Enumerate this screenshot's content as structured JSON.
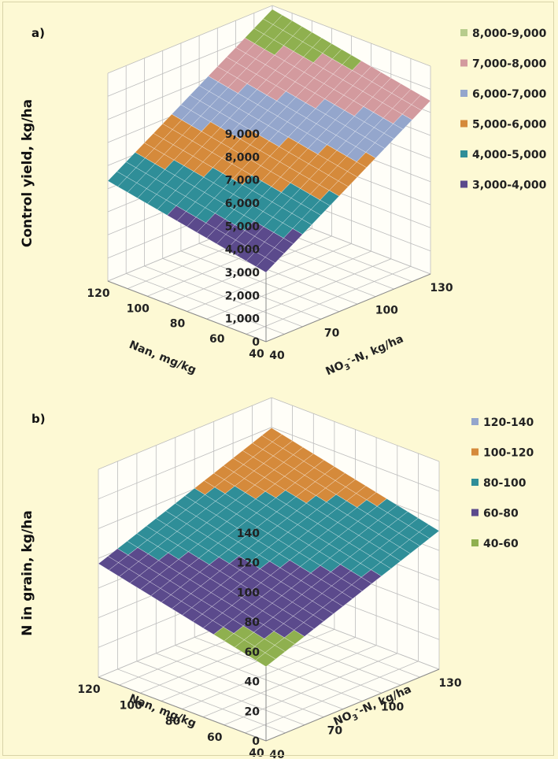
{
  "chart_data": [
    {
      "type": "surface",
      "panel_label": "a)",
      "zlabel": "Control yield, kg/ha",
      "xlabel": "Nan, mg/kg",
      "ylabel": "NO3-N, kg/ha",
      "x_ticks": [
        "40",
        "60",
        "80",
        "100",
        "120"
      ],
      "y_ticks": [
        "40",
        "70",
        "100",
        "130"
      ],
      "z_ticks": [
        "0",
        "1,000",
        "2,000",
        "3,000",
        "4,000",
        "5,000",
        "6,000",
        "7,000",
        "8,000",
        "9,000"
      ],
      "xlim": [
        40,
        120
      ],
      "ylim": [
        40,
        130
      ],
      "zlim": [
        0,
        9000
      ],
      "surface": {
        "z_at_x40_y40": 3000,
        "z_per_x_unit": 16.7,
        "z_per_y_unit": 50
      },
      "legend": [
        {
          "label": "8,000-9,000",
          "color": "#b7cc8c"
        },
        {
          "label": "7,000-8,000",
          "color": "#d39a9e"
        },
        {
          "label": "6,000-7,000",
          "color": "#94a6cc"
        },
        {
          "label": "5,000-6,000",
          "color": "#d58a3b"
        },
        {
          "label": "4,000-5,000",
          "color": "#2f8e98"
        },
        {
          "label": "3,000-4,000",
          "color": "#5b4a8c"
        }
      ],
      "bands": [
        3000,
        4000,
        5000,
        6000,
        7000,
        8000,
        9000
      ],
      "band_colors": [
        "#5b4a8c",
        "#2f8e98",
        "#d58a3b",
        "#94a6cc",
        "#d39a9e",
        "#8fb04f"
      ]
    },
    {
      "type": "surface",
      "panel_label": "b)",
      "zlabel": "N in grain, kg/ha",
      "xlabel": "Nan, mg/kg",
      "ylabel": "NO3-N, kg/ha",
      "x_ticks": [
        "40",
        "60",
        "80",
        "100",
        "120"
      ],
      "y_ticks": [
        "40",
        "70",
        "100",
        "130"
      ],
      "z_ticks": [
        "0",
        "20",
        "40",
        "60",
        "80",
        "100",
        "120",
        "140"
      ],
      "xlim": [
        40,
        120
      ],
      "ylim": [
        40,
        130
      ],
      "zlim": [
        0,
        140
      ],
      "surface": {
        "z_at_x40_y40": 50,
        "z_per_x_unit": 0.33,
        "z_per_y_unit": 0.48
      },
      "legend": [
        {
          "label": "120-140",
          "color": "#94a6cc"
        },
        {
          "label": "100-120",
          "color": "#d58a3b"
        },
        {
          "label": "80-100",
          "color": "#2f8e98"
        },
        {
          "label": "60-80",
          "color": "#5b4a8c"
        },
        {
          "label": "40-60",
          "color": "#8fb04f"
        }
      ],
      "bands": [
        40,
        60,
        80,
        100,
        120,
        140
      ],
      "band_colors": [
        "#8fb04f",
        "#5b4a8c",
        "#2f8e98",
        "#d58a3b",
        "#94a6cc"
      ]
    }
  ]
}
